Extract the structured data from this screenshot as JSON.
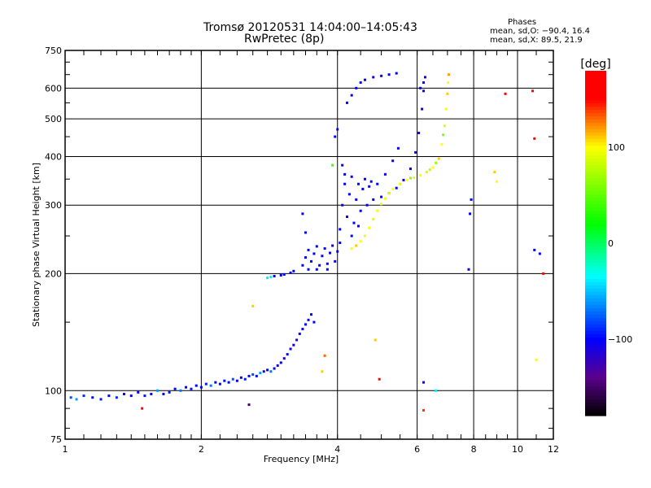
{
  "chart_data": {
    "type": "scatter",
    "title": "Tromsø 20120531 14:04:00–14:05:43",
    "subtitle": "RwPretec (8p)",
    "legend": {
      "heading": "Phases",
      "line1": "mean, sd,O: −90.4, 16.4",
      "line2": "mean, sd,X:  89.5, 21.9"
    },
    "xlabel": "Frequency [MHz]",
    "ylabel": "Stationary phase Virtual Height [km]",
    "xscale": "log",
    "yscale": "log",
    "xlim": [
      1,
      12
    ],
    "ylim": [
      75,
      750
    ],
    "xticks": [
      1,
      2,
      4,
      6,
      8,
      10,
      12
    ],
    "yticks": [
      75,
      100,
      200,
      300,
      400,
      500,
      600,
      750
    ],
    "grid": true,
    "colorbar": {
      "label": "[deg]",
      "range": [
        -180,
        180
      ],
      "ticks": [
        100,
        0,
        -100
      ],
      "tick_labels": [
        "100",
        "0",
        "−100"
      ]
    },
    "points_format": [
      "frequency_MHz",
      "height_km",
      "phase_deg"
    ],
    "points": [
      [
        1.03,
        96,
        -80
      ],
      [
        1.06,
        95,
        -60
      ],
      [
        1.1,
        97,
        -90
      ],
      [
        1.15,
        96,
        -100
      ],
      [
        1.2,
        95,
        -95
      ],
      [
        1.25,
        97,
        -100
      ],
      [
        1.3,
        96,
        -90
      ],
      [
        1.35,
        98,
        -105
      ],
      [
        1.4,
        97,
        -100
      ],
      [
        1.45,
        99,
        -100
      ],
      [
        1.5,
        97,
        -95
      ],
      [
        1.55,
        98,
        -100
      ],
      [
        1.6,
        100,
        -60
      ],
      [
        1.65,
        98,
        -100
      ],
      [
        1.7,
        99,
        -95
      ],
      [
        1.75,
        101,
        -100
      ],
      [
        1.8,
        100,
        -70
      ],
      [
        1.85,
        102,
        -100
      ],
      [
        1.9,
        101,
        -95
      ],
      [
        1.95,
        103,
        -100
      ],
      [
        2.0,
        102,
        -100
      ],
      [
        2.05,
        104,
        -95
      ],
      [
        2.1,
        103,
        -70
      ],
      [
        2.15,
        105,
        -100
      ],
      [
        2.2,
        104,
        -100
      ],
      [
        2.25,
        106,
        -95
      ],
      [
        2.3,
        105,
        -100
      ],
      [
        2.35,
        107,
        -80
      ],
      [
        2.4,
        106,
        -100
      ],
      [
        2.45,
        108,
        -100
      ],
      [
        2.5,
        107,
        -95
      ],
      [
        2.55,
        109,
        -100
      ],
      [
        2.6,
        110,
        -80
      ],
      [
        2.65,
        109,
        -100
      ],
      [
        2.7,
        111,
        -60
      ],
      [
        2.75,
        112,
        -100
      ],
      [
        2.8,
        113,
        -100
      ],
      [
        2.85,
        112,
        -70
      ],
      [
        2.9,
        114,
        -100
      ],
      [
        2.95,
        116,
        -110
      ],
      [
        3.0,
        118,
        -100
      ],
      [
        3.05,
        121,
        -110
      ],
      [
        3.1,
        124,
        -100
      ],
      [
        3.15,
        128,
        -110
      ],
      [
        3.2,
        131,
        -100
      ],
      [
        3.25,
        135,
        -110
      ],
      [
        3.3,
        140,
        -100
      ],
      [
        3.35,
        144,
        -105
      ],
      [
        3.4,
        148,
        -100
      ],
      [
        3.45,
        152,
        -110
      ],
      [
        3.5,
        157,
        -100
      ],
      [
        3.55,
        150,
        -100
      ],
      [
        2.8,
        195,
        -40
      ],
      [
        2.85,
        196,
        -40
      ],
      [
        2.9,
        197,
        -100
      ],
      [
        3.0,
        198,
        -100
      ],
      [
        3.05,
        199,
        -100
      ],
      [
        3.15,
        201,
        -100
      ],
      [
        3.2,
        203,
        -100
      ],
      [
        3.35,
        210,
        -100
      ],
      [
        3.4,
        220,
        -100
      ],
      [
        3.45,
        230,
        -100
      ],
      [
        3.5,
        215,
        -100
      ],
      [
        3.55,
        225,
        -100
      ],
      [
        3.6,
        235,
        -100
      ],
      [
        3.65,
        210,
        -100
      ],
      [
        3.7,
        222,
        -100
      ],
      [
        3.75,
        232,
        -100
      ],
      [
        3.8,
        212,
        -100
      ],
      [
        3.85,
        226,
        -100
      ],
      [
        3.9,
        236,
        -100
      ],
      [
        3.95,
        215,
        -100
      ],
      [
        4.0,
        228,
        -100
      ],
      [
        3.4,
        255,
        -100
      ],
      [
        3.35,
        285,
        -100
      ],
      [
        3.45,
        205,
        -100
      ],
      [
        3.6,
        205,
        -100
      ],
      [
        3.8,
        205,
        -100
      ],
      [
        4.05,
        260,
        -100
      ],
      [
        4.1,
        300,
        -100
      ],
      [
        4.15,
        340,
        -100
      ],
      [
        4.2,
        280,
        -100
      ],
      [
        4.25,
        320,
        -100
      ],
      [
        4.3,
        355,
        -100
      ],
      [
        4.35,
        270,
        -100
      ],
      [
        4.4,
        310,
        -100
      ],
      [
        4.45,
        340,
        -100
      ],
      [
        4.5,
        290,
        -100
      ],
      [
        4.55,
        330,
        -100
      ],
      [
        4.6,
        350,
        -100
      ],
      [
        4.65,
        300,
        -100
      ],
      [
        4.7,
        335,
        -100
      ],
      [
        4.75,
        345,
        -100
      ],
      [
        4.1,
        380,
        -100
      ],
      [
        4.15,
        360,
        -100
      ],
      [
        4.05,
        240,
        -100
      ],
      [
        4.3,
        250,
        -100
      ],
      [
        4.45,
        265,
        -100
      ],
      [
        4.8,
        310,
        -100
      ],
      [
        5.0,
        315,
        -100
      ],
      [
        5.2,
        322,
        -100
      ],
      [
        5.4,
        332,
        -100
      ],
      [
        5.6,
        348,
        -100
      ],
      [
        5.8,
        372,
        -100
      ],
      [
        5.95,
        410,
        -100
      ],
      [
        6.05,
        460,
        -100
      ],
      [
        6.15,
        530,
        -100
      ],
      [
        6.2,
        590,
        -100
      ],
      [
        6.25,
        640,
        -100
      ],
      [
        4.9,
        340,
        -100
      ],
      [
        5.1,
        360,
        -100
      ],
      [
        5.3,
        390,
        -100
      ],
      [
        5.45,
        420,
        -100
      ],
      [
        6.1,
        600,
        -100
      ],
      [
        6.2,
        620,
        -100
      ],
      [
        4.2,
        550,
        -100
      ],
      [
        4.3,
        575,
        -100
      ],
      [
        4.4,
        600,
        -100
      ],
      [
        4.5,
        620,
        -100
      ],
      [
        4.6,
        630,
        -100
      ],
      [
        4.8,
        640,
        -100
      ],
      [
        5.0,
        645,
        -100
      ],
      [
        5.2,
        650,
        -100
      ],
      [
        5.4,
        655,
        -100
      ],
      [
        4.0,
        470,
        -100
      ],
      [
        3.95,
        450,
        -100
      ],
      [
        4.3,
        232,
        100
      ],
      [
        4.4,
        236,
        110
      ],
      [
        4.5,
        242,
        100
      ],
      [
        4.6,
        250,
        95
      ],
      [
        4.7,
        262,
        100
      ],
      [
        4.8,
        276,
        90
      ],
      [
        4.9,
        290,
        100
      ],
      [
        5.0,
        302,
        95
      ],
      [
        5.1,
        312,
        100
      ],
      [
        5.2,
        322,
        85
      ],
      [
        5.3,
        330,
        100
      ],
      [
        5.5,
        340,
        90
      ],
      [
        5.7,
        348,
        100
      ],
      [
        5.9,
        353,
        95
      ],
      [
        6.1,
        358,
        100
      ],
      [
        6.3,
        365,
        90
      ],
      [
        6.5,
        375,
        100
      ],
      [
        6.7,
        395,
        110
      ],
      [
        6.8,
        430,
        100
      ],
      [
        6.9,
        480,
        90
      ],
      [
        6.95,
        530,
        100
      ],
      [
        7.0,
        580,
        110
      ],
      [
        7.02,
        620,
        100
      ],
      [
        7.05,
        650,
        120
      ],
      [
        6.85,
        455,
        60
      ],
      [
        6.6,
        385,
        70
      ],
      [
        6.4,
        370,
        80
      ],
      [
        5.8,
        352,
        60
      ],
      [
        1.48,
        90,
        160
      ],
      [
        2.55,
        92,
        -150
      ],
      [
        2.6,
        165,
        110
      ],
      [
        3.7,
        112,
        110
      ],
      [
        3.75,
        123,
        130
      ],
      [
        3.9,
        380,
        40
      ],
      [
        4.85,
        135,
        110
      ],
      [
        4.95,
        107,
        160
      ],
      [
        6.2,
        105,
        -100
      ],
      [
        6.2,
        89,
        140
      ],
      [
        6.6,
        100,
        -40
      ],
      [
        7.8,
        205,
        -100
      ],
      [
        7.85,
        285,
        -100
      ],
      [
        7.9,
        310,
        -100
      ],
      [
        8.9,
        365,
        110
      ],
      [
        9.0,
        345,
        100
      ],
      [
        9.4,
        580,
        150
      ],
      [
        10.8,
        590,
        150
      ],
      [
        10.9,
        445,
        150
      ],
      [
        11.0,
        120,
        100
      ],
      [
        10.9,
        230,
        -100
      ],
      [
        11.2,
        225,
        -100
      ],
      [
        11.4,
        200,
        150
      ]
    ]
  }
}
